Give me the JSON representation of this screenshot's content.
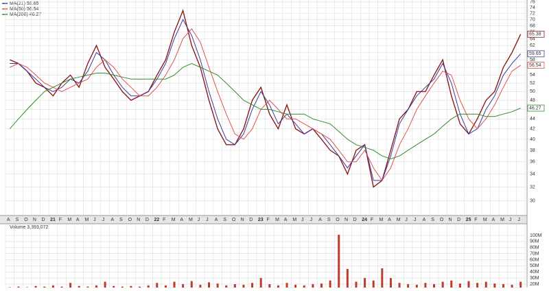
{
  "chart_data": [
    {
      "type": "line",
      "categories": [
        "A",
        "S",
        "O",
        "N",
        "D",
        "21",
        "F",
        "M",
        "A",
        "M",
        "J",
        "J",
        "A",
        "S",
        "O",
        "N",
        "D",
        "22",
        "F",
        "M",
        "A",
        "M",
        "J",
        "J",
        "A",
        "S",
        "O",
        "N",
        "D",
        "23",
        "F",
        "M",
        "A",
        "M",
        "J",
        "J",
        "A",
        "S",
        "O",
        "N",
        "D",
        "24",
        "F",
        "M",
        "A",
        "M",
        "J",
        "J",
        "A",
        "S",
        "O",
        "N",
        "D",
        "25",
        "F",
        "M",
        "A",
        "M",
        "J",
        "J"
      ],
      "series": [
        {
          "color": "#8b1a1a",
          "values": [
            58,
            57,
            55,
            52,
            51,
            49,
            52,
            54,
            51,
            57,
            62,
            56,
            53,
            50,
            48,
            49,
            50,
            54,
            58,
            66,
            73,
            62,
            56,
            48,
            42,
            39,
            39,
            42,
            48,
            51,
            45,
            42,
            47,
            42,
            41,
            42,
            40,
            38,
            37,
            34,
            38,
            39,
            32,
            33,
            38,
            44,
            46,
            50,
            50,
            54,
            58,
            49,
            43,
            41,
            44,
            48,
            50,
            56,
            60,
            65.38
          ]
        },
        {
          "name": "MA(21)",
          "color": "#3a3a9a",
          "values": [
            57,
            57,
            55,
            53,
            51,
            50,
            51,
            53,
            52,
            55,
            60,
            58,
            54,
            51,
            49,
            49,
            50,
            53,
            57,
            64,
            70,
            65,
            58,
            50,
            44,
            40,
            39,
            41,
            46,
            50,
            47,
            43,
            45,
            43,
            41,
            42,
            41,
            39,
            37,
            35,
            37,
            39,
            33,
            33,
            37,
            43,
            46,
            49,
            51,
            53,
            57,
            52,
            45,
            41,
            42,
            46,
            49,
            54,
            57,
            59.65
          ]
        },
        {
          "name": "MA(50)",
          "color": "#e05050",
          "values": [
            56,
            57,
            56,
            54,
            52,
            51,
            50,
            51,
            52,
            53,
            56,
            58,
            56,
            53,
            51,
            49,
            49,
            51,
            54,
            58,
            64,
            67,
            63,
            56,
            50,
            45,
            41,
            40,
            42,
            46,
            48,
            46,
            44,
            44,
            43,
            42,
            41,
            40,
            38,
            36,
            36,
            38,
            35,
            33,
            35,
            39,
            42,
            46,
            49,
            52,
            55,
            54,
            48,
            44,
            42,
            44,
            47,
            51,
            55,
            56.54
          ]
        },
        {
          "name": "MA(200)",
          "color": "#2e8b2e",
          "values": [
            42,
            44,
            46,
            48,
            50,
            51,
            52,
            53,
            53.5,
            54,
            54.5,
            54.5,
            54,
            53.5,
            53,
            53,
            53,
            53,
            53,
            54,
            56,
            57,
            56,
            55,
            54,
            52,
            50,
            48,
            47,
            46,
            46,
            45.5,
            45,
            45,
            45,
            44,
            43.5,
            43,
            41.5,
            40,
            39,
            38.5,
            38,
            37,
            36.5,
            37,
            38,
            39,
            40,
            41,
            42.5,
            44,
            45,
            45,
            45,
            44.5,
            44.5,
            45,
            45.5,
            46.27
          ]
        }
      ],
      "log_scale": true,
      "ylim": [
        28.1,
        76.7
      ],
      "yticks": [
        30,
        32,
        34,
        36,
        38,
        40,
        42,
        44,
        46,
        48,
        50,
        52,
        54,
        56,
        58,
        60,
        62,
        64,
        66,
        68,
        70,
        72,
        74,
        76
      ],
      "grid": true
    },
    {
      "type": "bar",
      "title": "Volume 3,393,072",
      "color": "#c0392b",
      "values": [
        15000000,
        16000000,
        15000000,
        17000000,
        16000000,
        18000000,
        16000000,
        22000000,
        17000000,
        16000000,
        18000000,
        24000000,
        17000000,
        16000000,
        17000000,
        16000000,
        18000000,
        22000000,
        18000000,
        24000000,
        20000000,
        25000000,
        19000000,
        23000000,
        21000000,
        18000000,
        20000000,
        19000000,
        22000000,
        30000000,
        20000000,
        18000000,
        22000000,
        19000000,
        18000000,
        20000000,
        21000000,
        26000000,
        101000000,
        45000000,
        24000000,
        30000000,
        26000000,
        46000000,
        30000000,
        22000000,
        20000000,
        19000000,
        22000000,
        20000000,
        24000000,
        26000000,
        21000000,
        25000000,
        22000000,
        24000000,
        21000000,
        20000000,
        19000000,
        24000000
      ],
      "ylim": [
        14400000,
        114600000
      ],
      "yticks": [
        {
          "value": 20000000,
          "label": "20M"
        },
        {
          "value": 30000000,
          "label": "30M"
        },
        {
          "value": 40000000,
          "label": "40M"
        },
        {
          "value": 50000000,
          "label": "50M"
        },
        {
          "value": 60000000,
          "label": "60M"
        },
        {
          "value": 70000000,
          "label": "70M"
        },
        {
          "value": 80000000,
          "label": "80M"
        },
        {
          "value": 90000000,
          "label": "90M"
        },
        {
          "value": 100000000,
          "label": "100M"
        }
      ],
      "grid": true
    }
  ]
}
